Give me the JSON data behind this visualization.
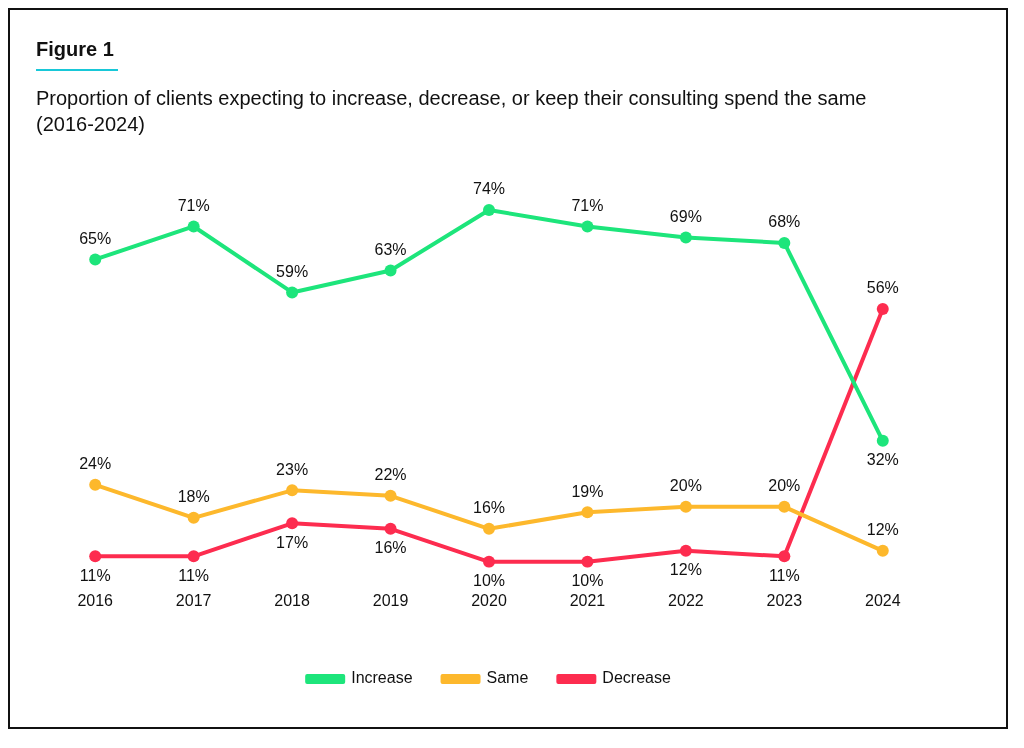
{
  "chart_data": {
    "type": "line",
    "title": "Figure 1",
    "subtitle": "Proportion of clients expecting to increase, decrease, or keep their consulting spend the same (2016-2024)",
    "categories": [
      "2016",
      "2017",
      "2018",
      "2019",
      "2020",
      "2021",
      "2022",
      "2023",
      "2024"
    ],
    "series": [
      {
        "name": "Increase",
        "color": "#1de57b",
        "values": [
          65,
          71,
          59,
          63,
          74,
          71,
          69,
          68,
          32
        ],
        "value_labels": [
          "65%",
          "71%",
          "59%",
          "63%",
          "74%",
          "71%",
          "69%",
          "68%",
          "32%"
        ]
      },
      {
        "name": "Same",
        "color": "#fdb82c",
        "values": [
          24,
          18,
          23,
          22,
          16,
          19,
          20,
          20,
          12
        ],
        "value_labels": [
          "24%",
          "18%",
          "23%",
          "22%",
          "16%",
          "19%",
          "20%",
          "20%",
          "12%"
        ]
      },
      {
        "name": "Decrease",
        "color": "#fd2c4f",
        "values": [
          11,
          11,
          17,
          16,
          10,
          10,
          12,
          11,
          56
        ],
        "value_labels": [
          "11%",
          "11%",
          "17%",
          "16%",
          "10%",
          "10%",
          "12%",
          "11%",
          "56%"
        ]
      }
    ],
    "tick_labels": "x",
    "legend": "bottom",
    "marker": "circle",
    "line_style": "solid"
  }
}
